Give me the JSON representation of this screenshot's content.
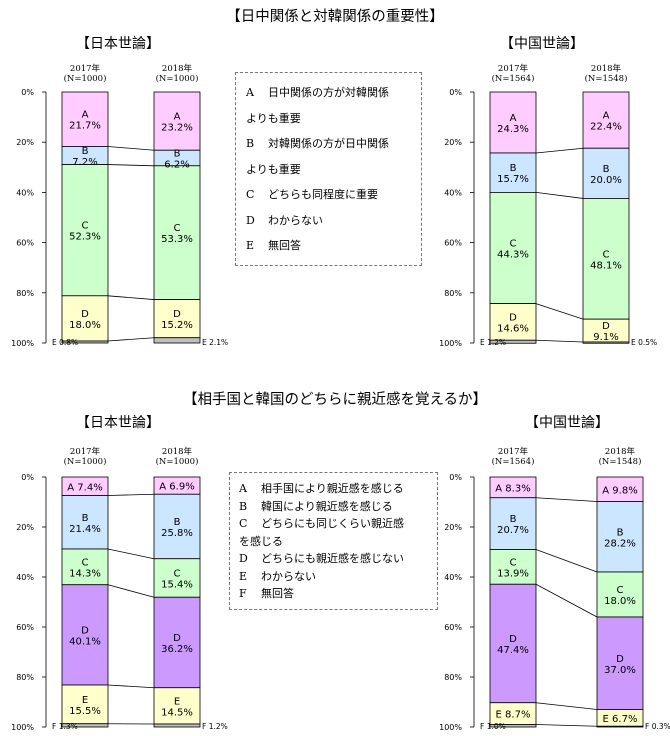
{
  "section1": {
    "title": "【日中関係と対韓関係の重要性】",
    "legend": [
      {
        "key": "A",
        "text": "日中関係の方が対韓関係"
      },
      {
        "key": "",
        "text": "よりも重要"
      },
      {
        "key": "B",
        "text": "対韓関係の方が日中関係"
      },
      {
        "key": "",
        "text": "よりも重要"
      },
      {
        "key": "C",
        "text": "どちらも同程度に重要"
      },
      {
        "key": "D",
        "text": "わからない"
      },
      {
        "key": "E",
        "text": "無回答"
      }
    ]
  },
  "section2": {
    "title": "【相手国と韓国のどちらに親近感を覚えるか】",
    "legend": [
      {
        "key": "A",
        "text": "相手国により親近感を感じる"
      },
      {
        "key": "B",
        "text": "韓国により親近感を感じる"
      },
      {
        "key": "C",
        "text": "どちらにも同じくらい親近感"
      },
      {
        "key": "",
        "text": "を感じる"
      },
      {
        "key": "D",
        "text": "どちらにも親近感を感じない"
      },
      {
        "key": "E",
        "text": "わからない"
      },
      {
        "key": "F",
        "text": "無回答"
      }
    ]
  },
  "colors": {
    "A": "#ffccff",
    "B": "#cce6ff",
    "C": "#ccffcc",
    "D1": "#ffffcc",
    "D2": "#cc99ff",
    "E2": "#ffffcc",
    "F": "#bfbfbf"
  },
  "chart_data": [
    {
      "type": "stacked-bar",
      "panel": "top-left",
      "title": "【日本世論】",
      "yticks": [
        "0%",
        "20%",
        "40%",
        "60%",
        "80%",
        "100%"
      ],
      "ylim": [
        0,
        100
      ],
      "categories": [
        "2017年\n(N=1000)",
        "2018年\n(N=1000)"
      ],
      "category_lines": [
        [
          "2017年",
          "(N=1000)"
        ],
        [
          "2018年",
          "(N=1000)"
        ]
      ],
      "series": [
        {
          "name": "A",
          "values": [
            21.7,
            23.2
          ],
          "labels": [
            "A\n21.7%",
            "A\n23.2%"
          ],
          "color": "#ffccff"
        },
        {
          "name": "B",
          "values": [
            7.2,
            6.2
          ],
          "labels": [
            "B\n7.2%",
            "B\n6.2%"
          ],
          "color": "#cce6ff"
        },
        {
          "name": "C",
          "values": [
            52.3,
            53.3
          ],
          "labels": [
            "C\n52.3%",
            "C\n53.3%"
          ],
          "color": "#ccffcc"
        },
        {
          "name": "D",
          "values": [
            18.0,
            15.2
          ],
          "labels": [
            "D\n18.0%",
            "D\n15.2%"
          ],
          "color": "#ffffcc"
        },
        {
          "name": "E",
          "values": [
            0.8,
            2.1
          ],
          "labels": [
            "E 0.8%",
            "E 2.1%"
          ],
          "color": "#bfbfbf",
          "outside": true
        }
      ]
    },
    {
      "type": "stacked-bar",
      "panel": "top-right",
      "title": "【中国世論】",
      "yticks": [
        "0%",
        "20%",
        "40%",
        "60%",
        "80%",
        "100%"
      ],
      "ylim": [
        0,
        100
      ],
      "categories": [
        "2017年\n(N=1564)",
        "2018年\n(N=1548)"
      ],
      "category_lines": [
        [
          "2017年",
          "(N=1564)"
        ],
        [
          "2018年",
          "(N=1548)"
        ]
      ],
      "series": [
        {
          "name": "A",
          "values": [
            24.3,
            22.4
          ],
          "labels": [
            "A\n24.3%",
            "A\n22.4%"
          ],
          "color": "#ffccff"
        },
        {
          "name": "B",
          "values": [
            15.7,
            20.0
          ],
          "labels": [
            "B\n15.7%",
            "B\n20.0%"
          ],
          "color": "#cce6ff"
        },
        {
          "name": "C",
          "values": [
            44.3,
            48.1
          ],
          "labels": [
            "C\n44.3%",
            "C\n48.1%"
          ],
          "color": "#ccffcc"
        },
        {
          "name": "D",
          "values": [
            14.6,
            9.1
          ],
          "labels": [
            "D\n14.6%",
            "D\n9.1%"
          ],
          "color": "#ffffcc"
        },
        {
          "name": "E",
          "values": [
            1.2,
            0.5
          ],
          "labels": [
            "E 1.2%",
            "E 0.5%"
          ],
          "color": "#bfbfbf",
          "outside": true
        }
      ]
    },
    {
      "type": "stacked-bar",
      "panel": "bottom-left",
      "title": "【日本世論】",
      "yticks": [
        "0%",
        "20%",
        "40%",
        "60%",
        "80%",
        "100%"
      ],
      "ylim": [
        0,
        100
      ],
      "categories": [
        "2017年\n(N=1000)",
        "2018年\n(N=1000)"
      ],
      "category_lines": [
        [
          "2017年",
          "(N=1000)"
        ],
        [
          "2018年",
          "(N=1000)"
        ]
      ],
      "series": [
        {
          "name": "A",
          "values": [
            7.4,
            6.9
          ],
          "labels": [
            "A 7.4%",
            "A 6.9%"
          ],
          "color": "#ffccff"
        },
        {
          "name": "B",
          "values": [
            21.4,
            25.8
          ],
          "labels": [
            "B\n21.4%",
            "B\n25.8%"
          ],
          "color": "#cce6ff"
        },
        {
          "name": "C",
          "values": [
            14.3,
            15.4
          ],
          "labels": [
            "C\n14.3%",
            "C\n15.4%"
          ],
          "color": "#ccffcc"
        },
        {
          "name": "D",
          "values": [
            40.1,
            36.2
          ],
          "labels": [
            "D\n40.1%",
            "D\n36.2%"
          ],
          "color": "#cc99ff"
        },
        {
          "name": "E",
          "values": [
            15.5,
            14.5
          ],
          "labels": [
            "E\n15.5%",
            "E\n14.5%"
          ],
          "color": "#ffffcc"
        },
        {
          "name": "F",
          "values": [
            1.3,
            1.2
          ],
          "labels": [
            "F 1.3%",
            "F 1.2%"
          ],
          "color": "#bfbfbf",
          "outside": true
        }
      ]
    },
    {
      "type": "stacked-bar",
      "panel": "bottom-right",
      "title": "【中国世論】",
      "yticks": [
        "0%",
        "20%",
        "40%",
        "60%",
        "80%",
        "100%"
      ],
      "ylim": [
        0,
        100
      ],
      "categories": [
        "2017年\n(N=1564)",
        "2018年\n(N=1548)"
      ],
      "category_lines": [
        [
          "2017年",
          "(N=1564)"
        ],
        [
          "2018年",
          "(N=1548)"
        ]
      ],
      "series": [
        {
          "name": "A",
          "values": [
            8.3,
            9.8
          ],
          "labels": [
            "A 8.3%",
            "A 9.8%"
          ],
          "color": "#ffccff"
        },
        {
          "name": "B",
          "values": [
            20.7,
            28.2
          ],
          "labels": [
            "B\n20.7%",
            "B\n28.2%"
          ],
          "color": "#cce6ff"
        },
        {
          "name": "C",
          "values": [
            13.9,
            18.0
          ],
          "labels": [
            "C\n13.9%",
            "C\n18.0%"
          ],
          "color": "#ccffcc"
        },
        {
          "name": "D",
          "values": [
            47.4,
            37.0
          ],
          "labels": [
            "D\n47.4%",
            "D\n37.0%"
          ],
          "color": "#cc99ff"
        },
        {
          "name": "E",
          "values": [
            8.7,
            6.7
          ],
          "labels": [
            "E 8.7%",
            "E 6.7%"
          ],
          "color": "#ffffcc"
        },
        {
          "name": "F",
          "values": [
            1.0,
            0.3
          ],
          "labels": [
            "F 1.0%",
            "F 0.3%"
          ],
          "color": "#bfbfbf",
          "outside": true
        }
      ]
    }
  ]
}
